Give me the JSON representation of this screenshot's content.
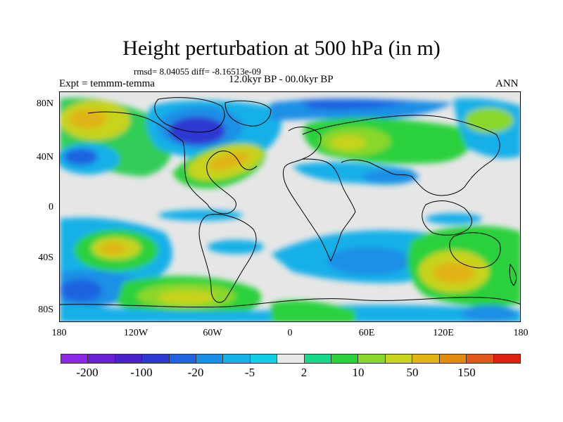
{
  "title": "Height perturbation at 500 hPa (in m)",
  "stats": "rmsd= 8.04055 diff= -8.16513e-09",
  "experiment": "Expt = temmm-temma",
  "period": "12.0kyr BP - 00.0kyr BP",
  "season": "ANN",
  "map": {
    "lat_labels": [
      "80N",
      "40N",
      "0",
      "40S",
      "80S"
    ],
    "lon_labels": [
      "180",
      "120W",
      "60W",
      "0",
      "60E",
      "120E",
      "180"
    ]
  },
  "colorbar": {
    "colors": [
      "#8a28e6",
      "#6a1fd6",
      "#4a22c8",
      "#2d38d0",
      "#1f63e0",
      "#1a8fe6",
      "#16b0e8",
      "#12cde6",
      "#e8e8e8",
      "#18d98a",
      "#2cd13c",
      "#8ad72a",
      "#c8d31c",
      "#e0b414",
      "#e38a10",
      "#e3561a",
      "#e0200e"
    ],
    "labels": [
      "-200",
      "-100",
      "-20",
      "-5",
      "2",
      "10",
      "50",
      "150"
    ]
  }
}
